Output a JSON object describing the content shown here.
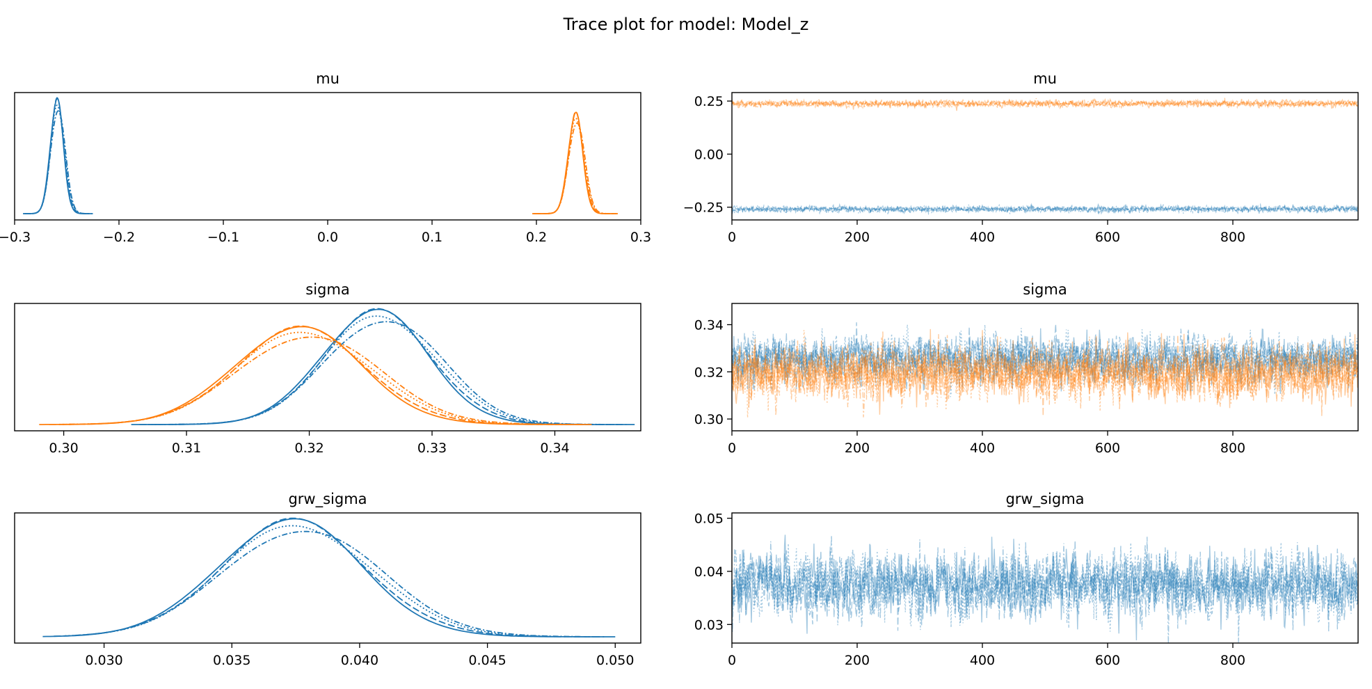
{
  "figure_title": "Trace plot for model: Model_z",
  "colors": {
    "chain_group_1": "#1f77b4",
    "chain_group_2": "#ff7f0e"
  },
  "chart_data": [
    {
      "type": "line",
      "kind": "density",
      "title": "mu",
      "xlim": [
        -0.3,
        0.3
      ],
      "xticks": [
        -0.3,
        -0.2,
        -0.1,
        0.0,
        0.1,
        0.2,
        0.3
      ],
      "xtick_labels": [
        "−0.3",
        "−0.2",
        "−0.1",
        "0.0",
        "0.1",
        "0.2",
        "0.3"
      ],
      "yticks_visible": false,
      "series": [
        {
          "color": "#1f77b4",
          "mean": -0.259,
          "sd": 0.0065,
          "peak": 1.0,
          "range": [
            -0.292,
            -0.225
          ],
          "chains": 4
        },
        {
          "color": "#ff7f0e",
          "mean": 0.238,
          "sd": 0.0072,
          "peak": 0.88,
          "range": [
            0.196,
            0.278
          ],
          "chains": 4
        }
      ]
    },
    {
      "type": "line",
      "kind": "trace",
      "title": "mu",
      "xlim": [
        0,
        1000
      ],
      "xticks": [
        0,
        200,
        400,
        600,
        800
      ],
      "xtick_labels": [
        "0",
        "200",
        "400",
        "600",
        "800"
      ],
      "ylim": [
        -0.31,
        0.29
      ],
      "yticks": [
        -0.25,
        0.0,
        0.25
      ],
      "ytick_labels": [
        "−0.25",
        "0.00",
        "0.25"
      ],
      "series": [
        {
          "color": "#ff7f0e",
          "mean": 0.238,
          "sd": 0.0072,
          "draws": 1000,
          "chains": 4
        },
        {
          "color": "#1f77b4",
          "mean": -0.259,
          "sd": 0.0065,
          "draws": 1000,
          "chains": 4
        }
      ]
    },
    {
      "type": "line",
      "kind": "density",
      "title": "sigma",
      "xlim": [
        0.296,
        0.347
      ],
      "xticks": [
        0.3,
        0.31,
        0.32,
        0.33,
        0.34
      ],
      "xtick_labels": [
        "0.30",
        "0.31",
        "0.32",
        "0.33",
        "0.34"
      ],
      "yticks_visible": false,
      "series": [
        {
          "color": "#1f77b4",
          "mean": 0.3257,
          "sd": 0.0045,
          "peak": 1.0,
          "range": [
            0.3055,
            0.3465
          ],
          "chains": 4
        },
        {
          "color": "#ff7f0e",
          "mean": 0.3195,
          "sd": 0.0054,
          "peak": 0.85,
          "range": [
            0.298,
            0.343
          ],
          "chains": 4
        }
      ]
    },
    {
      "type": "line",
      "kind": "trace",
      "title": "sigma",
      "xlim": [
        0,
        1000
      ],
      "xticks": [
        0,
        200,
        400,
        600,
        800
      ],
      "xtick_labels": [
        "0",
        "200",
        "400",
        "600",
        "800"
      ],
      "ylim": [
        0.295,
        0.349
      ],
      "yticks": [
        0.3,
        0.32,
        0.34
      ],
      "ytick_labels": [
        "0.30",
        "0.32",
        "0.34"
      ],
      "series": [
        {
          "color": "#1f77b4",
          "mean": 0.3257,
          "sd": 0.0045,
          "draws": 1000,
          "chains": 4
        },
        {
          "color": "#ff7f0e",
          "mean": 0.3195,
          "sd": 0.0054,
          "draws": 1000,
          "chains": 4
        }
      ]
    },
    {
      "type": "line",
      "kind": "density",
      "title": "grw_sigma",
      "xlim": [
        0.0265,
        0.051
      ],
      "xticks": [
        0.03,
        0.035,
        0.04,
        0.045,
        0.05
      ],
      "xtick_labels": [
        "0.030",
        "0.035",
        "0.040",
        "0.045",
        "0.050"
      ],
      "yticks_visible": false,
      "series": [
        {
          "color": "#1f77b4",
          "mean": 0.0375,
          "sd": 0.0029,
          "peak": 1.0,
          "range": [
            0.0276,
            0.05
          ],
          "chains": 4
        }
      ]
    },
    {
      "type": "line",
      "kind": "trace",
      "title": "grw_sigma",
      "xlim": [
        0,
        1000
      ],
      "xticks": [
        0,
        200,
        400,
        600,
        800
      ],
      "xtick_labels": [
        "0",
        "200",
        "400",
        "600",
        "800"
      ],
      "ylim": [
        0.0265,
        0.051
      ],
      "yticks": [
        0.03,
        0.04,
        0.05
      ],
      "ytick_labels": [
        "0.03",
        "0.04",
        "0.05"
      ],
      "series": [
        {
          "color": "#1f77b4",
          "mean": 0.0375,
          "sd": 0.0029,
          "draws": 1000,
          "chains": 4
        }
      ]
    }
  ]
}
